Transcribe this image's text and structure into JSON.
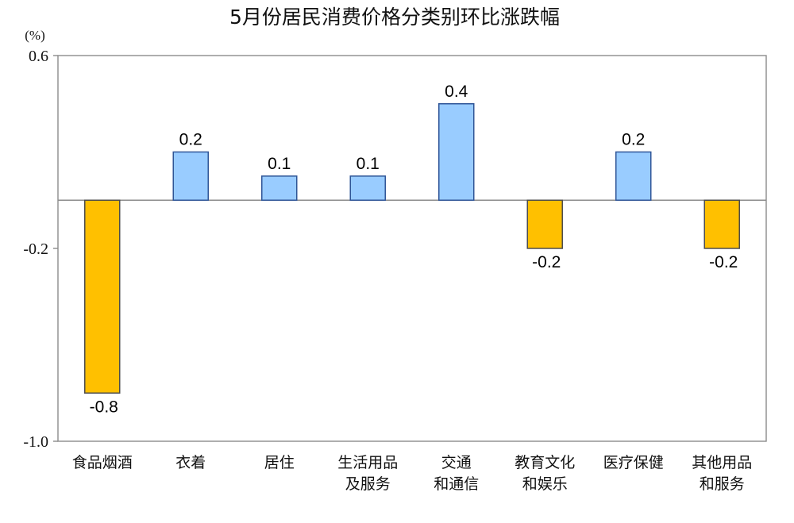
{
  "chart_data": {
    "type": "bar",
    "title": "5月份居民消费价格分类别环比涨跌幅",
    "ylabel": "(%)",
    "ylim": [
      -1.0,
      0.6
    ],
    "yticks": [
      0.6,
      -0.2,
      -1.0
    ],
    "ytick_labels": [
      "0.6",
      "-0.2",
      "-1.0"
    ],
    "grid": false,
    "categories": [
      [
        "食品烟酒"
      ],
      [
        "衣着"
      ],
      [
        "居住"
      ],
      [
        "生活用品",
        "及服务"
      ],
      [
        "交通",
        "和通信"
      ],
      [
        "教育文化",
        "和娱乐"
      ],
      [
        "医疗保健"
      ],
      [
        "其他用品",
        "和服务"
      ]
    ],
    "values": [
      -0.8,
      0.2,
      0.1,
      0.1,
      0.4,
      -0.2,
      0.2,
      -0.2
    ],
    "data_labels": [
      "-0.8",
      "0.2",
      "0.1",
      "0.1",
      "0.4",
      "-0.2",
      "0.2",
      "-0.2"
    ],
    "colors": {
      "positive_fill": "#99CCFF",
      "positive_stroke": "#2F5597",
      "negative_fill": "#FFC000",
      "negative_stroke": "#4D4D4D",
      "axis": "#8C8C8C"
    }
  }
}
